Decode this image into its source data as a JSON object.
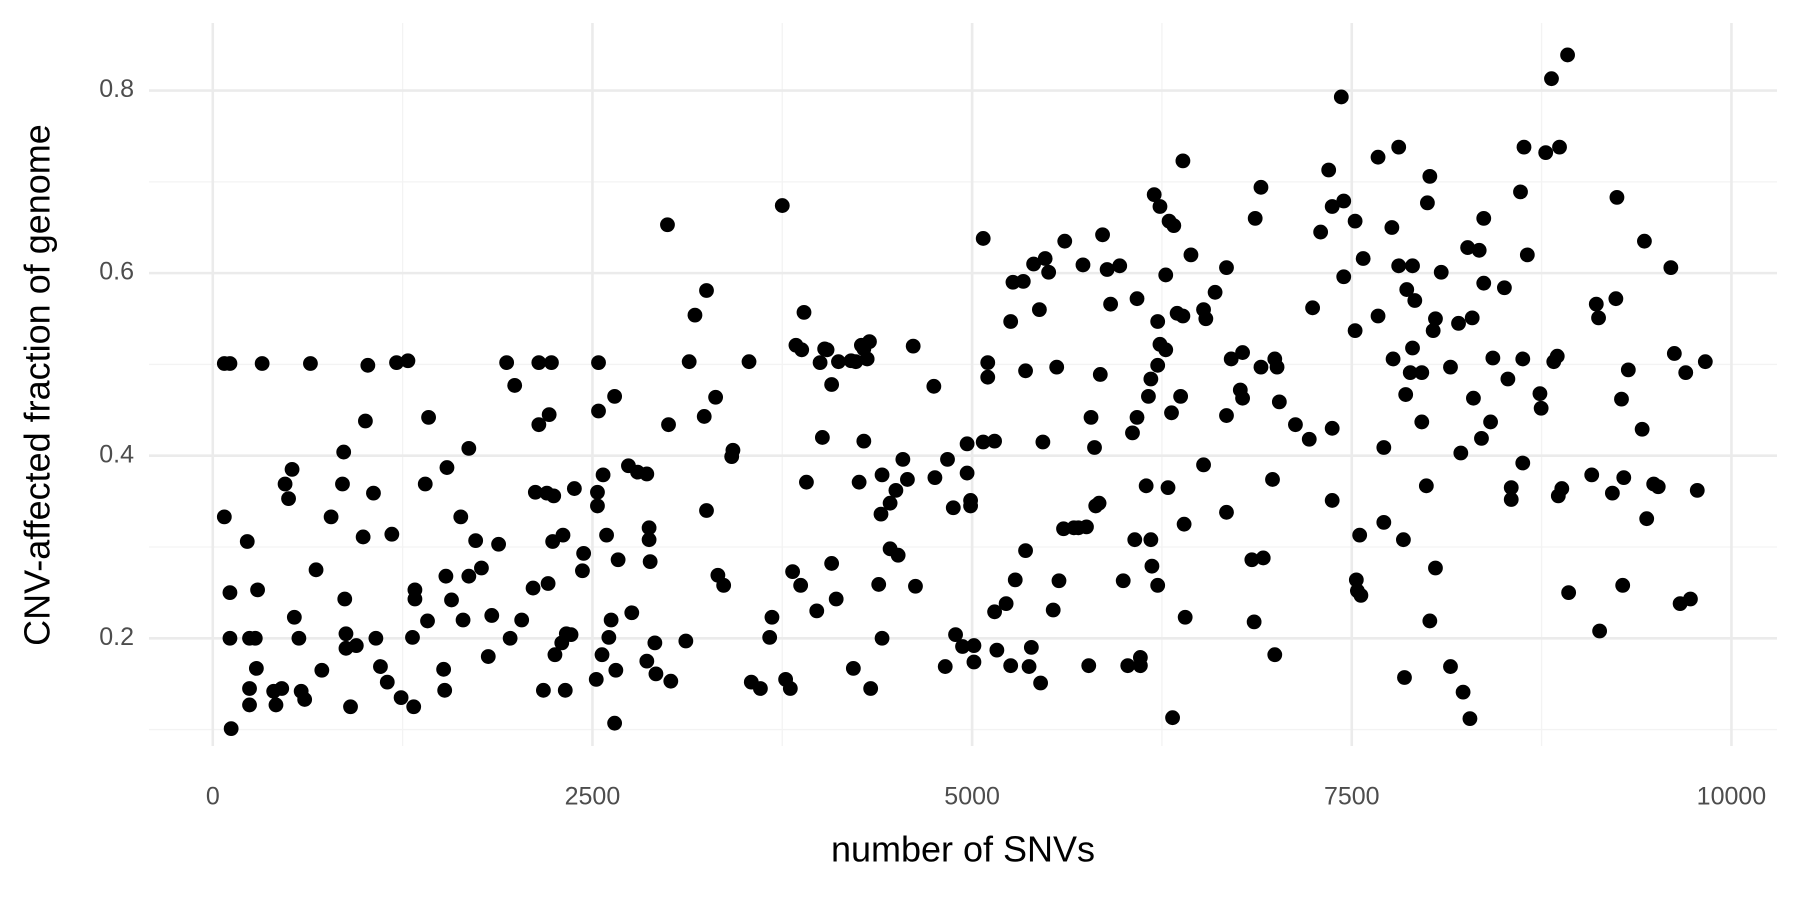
{
  "chart_data": {
    "type": "scatter",
    "x_label": "number of SNVs",
    "y_label": "CNV-affected fraction of genome",
    "color": "#000000",
    "grid": true,
    "xlim": [
      -420,
      10300
    ],
    "xticks": [
      0,
      2500,
      5000,
      7500,
      10000
    ],
    "ylim": [
      0.082,
      0.874
    ],
    "yticks": [
      0.2,
      0.4,
      0.6,
      0.8
    ],
    "x": [
      76,
      76,
      113,
      113,
      113,
      121,
      227,
      242,
      280,
      242,
      242,
      287,
      295,
      325,
      401,
      416,
      454,
      476,
      499,
      522,
      537,
      567,
      582,
      605,
      643,
      680,
      718,
      779,
      862,
      854,
      869,
      877,
      877,
      907,
      945,
      990,
      1005,
      1021,
      1058,
      1074,
      1104,
      1149,
      1179,
      1210,
      1240,
      1285,
      1315,
      1323,
      1331,
      1331,
      1399,
      1414,
      1421,
      1520,
      1527,
      1535,
      1542,
      1572,
      1633,
      1648,
      1686,
      1686,
      1731,
      1769,
      1814,
      1837,
      1882,
      1935,
      1958,
      1988,
      2034,
      2109,
      2124,
      2147,
      2147,
      2177,
      2200,
      2208,
      2215,
      2230,
      2238,
      2245,
      2253,
      2298,
      2306,
      2321,
      2328,
      2359,
      2381,
      2434,
      2442,
      2525,
      2533,
      2533,
      2540,
      2540,
      2563,
      2570,
      2593,
      2608,
      2669,
      2623,
      2646,
      2646,
      2654,
      2737,
      2759,
      2797,
      2858,
      2858,
      2873,
      2873,
      2880,
      2994,
      2911,
      2918,
      3001,
      3016,
      3115,
      3137,
      3175,
      3236,
      3251,
      3251,
      3311,
      3326,
      3364,
      3417,
      3425,
      3531,
      3546,
      3606,
      3667,
      3682,
      3750,
      3772,
      3803,
      3818,
      3840,
      3871,
      3878,
      3893,
      3909,
      3977,
      3999,
      4014,
      4029,
      4045,
      4075,
      4075,
      4105,
      4120,
      4203,
      4218,
      4234,
      4256,
      4271,
      4287,
      4287,
      4309,
      4324,
      4332,
      4385,
      4400,
      4407,
      4407,
      4460,
      4460,
      4498,
      4513,
      4544,
      4574,
      4612,
      4627,
      4748,
      4755,
      4823,
      4838,
      4876,
      4891,
      4937,
      4967,
      4967,
      4990,
      4990,
      5012,
      5012,
      5073,
      5073,
      5103,
      5103,
      5148,
      5148,
      5163,
      5224,
      5254,
      5254,
      5269,
      5284,
      5337,
      5352,
      5352,
      5375,
      5390,
      5405,
      5443,
      5451,
      5466,
      5481,
      5504,
      5534,
      5557,
      5572,
      5602,
      5610,
      5670,
      5700,
      5730,
      5753,
      5768,
      5783,
      5806,
      5814,
      5836,
      5844,
      5859,
      5889,
      5912,
      5972,
      5995,
      6025,
      6056,
      6071,
      6086,
      6086,
      6177,
      6146,
      6199,
      6237,
      6388,
      6297,
      6328,
      6275,
      6222,
      6237,
      6222,
      6275,
      6177,
      6161,
      6313,
      6373,
      6290,
      6184,
      6222,
      6108,
      6108,
      6403,
      6320,
      6396,
      6350,
      6388,
      6441,
      6524,
      6524,
      6539,
      6600,
      6675,
      6675,
      6675,
      6706,
      6766,
      6781,
      6781,
      6842,
      6857,
      6864,
      6902,
      6902,
      6917,
      6993,
      7008,
      6978,
      6993,
      7023,
      7129,
      7220,
      7242,
      7295,
      7348,
      7371,
      7371,
      7371,
      7431,
      7447,
      7447,
      7522,
      7522,
      7552,
      7530,
      7537,
      7560,
      7575,
      7673,
      7673,
      7711,
      7711,
      7764,
      7772,
      7809,
      7809,
      7840,
      7847,
      7855,
      7862,
      7885,
      7900,
      7900,
      7915,
      7961,
      7961,
      7991,
      7998,
      8014,
      8014,
      8036,
      8051,
      8051,
      8089,
      8150,
      8150,
      8203,
      8218,
      8233,
      8263,
      8278,
      8293,
      8301,
      8339,
      8354,
      8369,
      8369,
      8414,
      8429,
      8505,
      8528,
      8550,
      8550,
      8611,
      8626,
      8634,
      8626,
      8656,
      8739,
      8747,
      8777,
      8815,
      8830,
      8853,
      8868,
      8860,
      8883,
      8921,
      8928,
      9080,
      9110,
      9125,
      9132,
      9216,
      9239,
      9246,
      9276,
      9284,
      9291,
      9321,
      9412,
      9427,
      9442,
      9488,
      9518,
      9601,
      9624,
      9662,
      9699,
      9730,
      9775,
      9828
    ],
    "values": [
      0.333,
      0.501,
      0.501,
      0.25,
      0.2,
      0.101,
      0.306,
      0.2,
      0.2,
      0.145,
      0.127,
      0.167,
      0.253,
      0.501,
      0.142,
      0.127,
      0.145,
      0.369,
      0.353,
      0.385,
      0.223,
      0.2,
      0.142,
      0.133,
      0.501,
      0.275,
      0.165,
      0.333,
      0.404,
      0.369,
      0.243,
      0.205,
      0.189,
      0.125,
      0.192,
      0.311,
      0.438,
      0.499,
      0.359,
      0.2,
      0.169,
      0.152,
      0.314,
      0.502,
      0.135,
      0.504,
      0.201,
      0.125,
      0.243,
      0.253,
      0.369,
      0.219,
      0.442,
      0.166,
      0.143,
      0.268,
      0.387,
      0.242,
      0.333,
      0.22,
      0.408,
      0.268,
      0.307,
      0.277,
      0.18,
      0.225,
      0.303,
      0.502,
      0.2,
      0.477,
      0.22,
      0.255,
      0.36,
      0.434,
      0.502,
      0.143,
      0.359,
      0.26,
      0.445,
      0.502,
      0.306,
      0.356,
      0.182,
      0.195,
      0.313,
      0.143,
      0.205,
      0.204,
      0.364,
      0.274,
      0.293,
      0.155,
      0.36,
      0.345,
      0.502,
      0.449,
      0.182,
      0.379,
      0.313,
      0.201,
      0.286,
      0.22,
      0.107,
      0.465,
      0.165,
      0.389,
      0.228,
      0.382,
      0.38,
      0.175,
      0.308,
      0.321,
      0.284,
      0.653,
      0.195,
      0.161,
      0.434,
      0.153,
      0.197,
      0.503,
      0.554,
      0.443,
      0.34,
      0.581,
      0.464,
      0.269,
      0.258,
      0.399,
      0.406,
      0.503,
      0.152,
      0.145,
      0.201,
      0.223,
      0.674,
      0.155,
      0.145,
      0.273,
      0.521,
      0.258,
      0.516,
      0.557,
      0.371,
      0.23,
      0.502,
      0.42,
      0.517,
      0.516,
      0.282,
      0.478,
      0.243,
      0.503,
      0.504,
      0.167,
      0.503,
      0.371,
      0.521,
      0.517,
      0.416,
      0.506,
      0.525,
      0.145,
      0.259,
      0.336,
      0.2,
      0.379,
      0.298,
      0.348,
      0.362,
      0.291,
      0.396,
      0.374,
      0.52,
      0.257,
      0.476,
      0.376,
      0.169,
      0.396,
      0.343,
      0.204,
      0.191,
      0.381,
      0.413,
      0.345,
      0.351,
      0.192,
      0.174,
      0.415,
      0.638,
      0.502,
      0.486,
      0.229,
      0.416,
      0.187,
      0.238,
      0.17,
      0.547,
      0.59,
      0.264,
      0.591,
      0.493,
      0.296,
      0.169,
      0.19,
      0.61,
      0.56,
      0.151,
      0.415,
      0.616,
      0.601,
      0.231,
      0.497,
      0.263,
      0.32,
      0.635,
      0.321,
      0.321,
      0.609,
      0.322,
      0.17,
      0.442,
      0.409,
      0.345,
      0.348,
      0.489,
      0.642,
      0.604,
      0.566,
      0.608,
      0.263,
      0.17,
      0.425,
      0.308,
      0.442,
      0.572,
      0.308,
      0.367,
      0.686,
      0.673,
      0.723,
      0.657,
      0.652,
      0.598,
      0.547,
      0.522,
      0.499,
      0.516,
      0.484,
      0.465,
      0.447,
      0.465,
      0.365,
      0.279,
      0.258,
      0.179,
      0.17,
      0.223,
      0.113,
      0.325,
      0.556,
      0.553,
      0.62,
      0.39,
      0.56,
      0.55,
      0.579,
      0.606,
      0.338,
      0.444,
      0.506,
      0.472,
      0.463,
      0.513,
      0.286,
      0.218,
      0.66,
      0.694,
      0.497,
      0.288,
      0.506,
      0.497,
      0.374,
      0.182,
      0.459,
      0.434,
      0.418,
      0.562,
      0.645,
      0.713,
      0.673,
      0.43,
      0.351,
      0.793,
      0.679,
      0.596,
      0.657,
      0.537,
      0.313,
      0.264,
      0.252,
      0.247,
      0.616,
      0.727,
      0.553,
      0.409,
      0.327,
      0.65,
      0.506,
      0.738,
      0.608,
      0.308,
      0.157,
      0.467,
      0.582,
      0.491,
      0.608,
      0.518,
      0.57,
      0.437,
      0.491,
      0.367,
      0.677,
      0.706,
      0.219,
      0.537,
      0.55,
      0.277,
      0.601,
      0.497,
      0.169,
      0.545,
      0.403,
      0.141,
      0.628,
      0.112,
      0.551,
      0.463,
      0.625,
      0.419,
      0.589,
      0.66,
      0.437,
      0.507,
      0.584,
      0.484,
      0.352,
      0.365,
      0.689,
      0.392,
      0.738,
      0.506,
      0.62,
      0.468,
      0.452,
      0.732,
      0.813,
      0.503,
      0.509,
      0.738,
      0.356,
      0.364,
      0.839,
      0.25,
      0.379,
      0.566,
      0.551,
      0.208,
      0.359,
      0.572,
      0.683,
      0.462,
      0.258,
      0.376,
      0.494,
      0.429,
      0.635,
      0.331,
      0.369,
      0.366,
      0.606,
      0.512,
      0.238,
      0.491,
      0.243,
      0.362,
      0.503
    ]
  }
}
